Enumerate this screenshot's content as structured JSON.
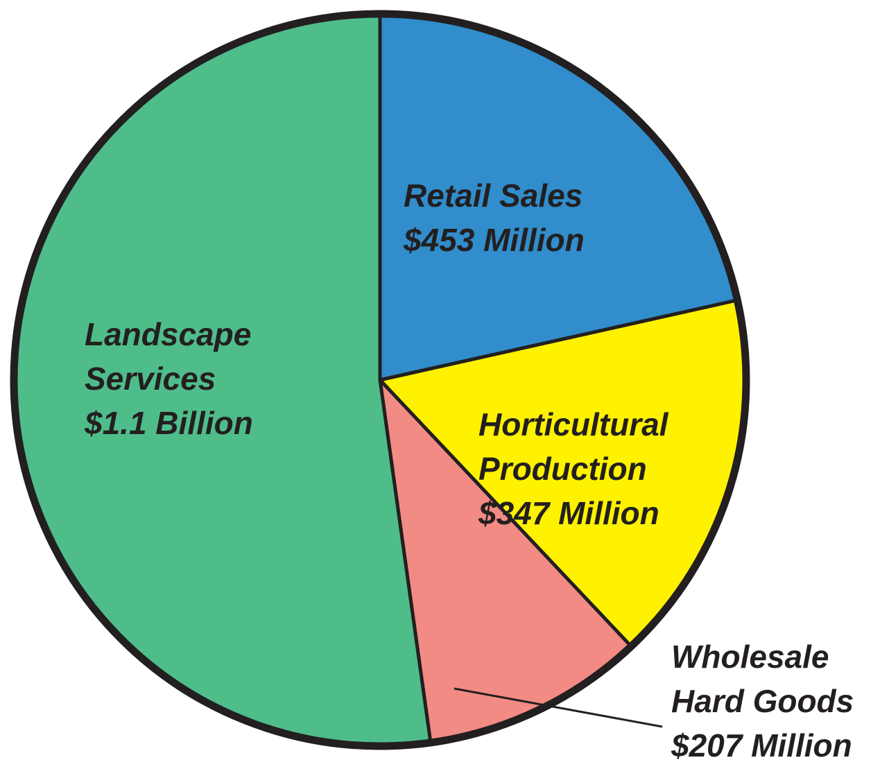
{
  "chart_data": {
    "type": "pie",
    "categories": [
      "Retail Sales",
      "Horticultural Production",
      "Wholesale Hard Goods",
      "Landscape Services"
    ],
    "values": [
      453,
      347,
      207,
      1100
    ],
    "value_labels": [
      "$453 Million",
      "$347 Million",
      "$207 Million",
      "$1.1 Billion"
    ],
    "colors": [
      "#318dcb",
      "#fff200",
      "#f38b85",
      "#4fbd8a"
    ]
  }
}
